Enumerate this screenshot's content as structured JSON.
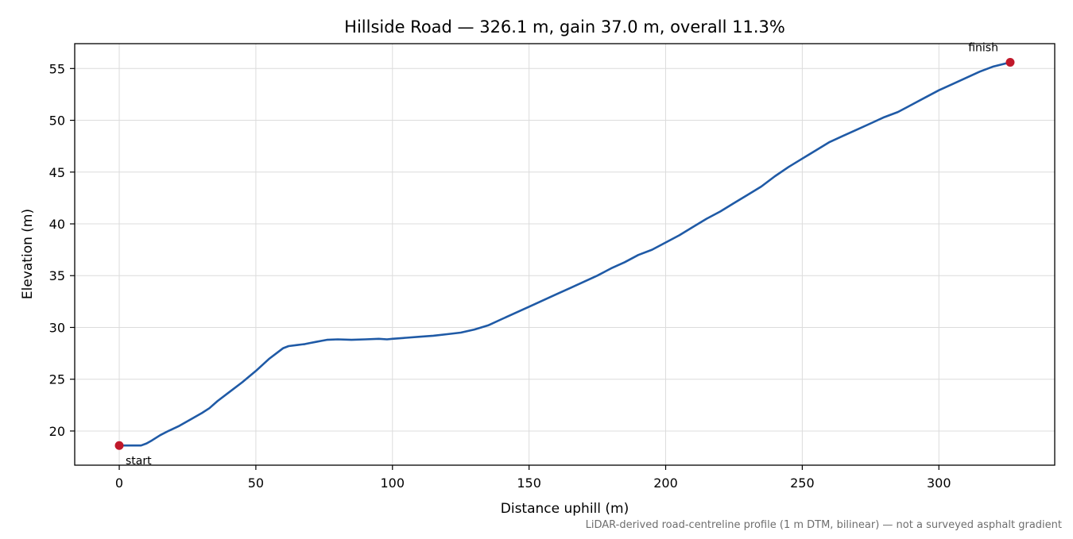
{
  "chart_data": {
    "type": "line",
    "title": "Hillside Road — 326.1 m, gain 37.0 m, overall 11.3%",
    "xlabel": "Distance uphill (m)",
    "ylabel": "Elevation (m)",
    "xlim": [
      -16.3,
      342.4
    ],
    "ylim": [
      16.7,
      57.4
    ],
    "x_ticks": [
      0,
      50,
      100,
      150,
      200,
      250,
      300
    ],
    "y_ticks": [
      20,
      25,
      30,
      35,
      40,
      45,
      50,
      55
    ],
    "grid": true,
    "footnote": "LiDAR-derived road-centreline profile (1 m DTM, bilinear) — not a surveyed asphalt gradient",
    "series": [
      {
        "color": "#1f5aa6",
        "x": [
          0,
          3,
          5,
          8,
          10,
          12,
          15,
          18,
          22,
          26,
          30,
          33,
          36,
          40,
          45,
          50,
          55,
          58,
          60,
          62,
          65,
          68,
          70,
          72,
          74,
          76,
          80,
          85,
          90,
          95,
          98,
          100,
          105,
          110,
          115,
          120,
          125,
          130,
          135,
          140,
          145,
          150,
          155,
          160,
          165,
          170,
          175,
          180,
          185,
          190,
          195,
          200,
          205,
          210,
          215,
          220,
          225,
          230,
          235,
          240,
          245,
          250,
          255,
          260,
          265,
          270,
          275,
          280,
          285,
          290,
          295,
          300,
          305,
          310,
          315,
          320,
          326.1
        ],
        "y": [
          18.6,
          18.6,
          18.6,
          18.6,
          18.8,
          19.1,
          19.6,
          20.0,
          20.5,
          21.1,
          21.7,
          22.2,
          22.9,
          23.7,
          24.7,
          25.8,
          27.0,
          27.6,
          28.0,
          28.2,
          28.3,
          28.4,
          28.5,
          28.6,
          28.7,
          28.8,
          28.85,
          28.8,
          28.85,
          28.9,
          28.85,
          28.9,
          29.0,
          29.1,
          29.2,
          29.35,
          29.5,
          29.8,
          30.2,
          30.8,
          31.4,
          32.0,
          32.6,
          33.2,
          33.8,
          34.4,
          35.0,
          35.7,
          36.3,
          37.0,
          37.5,
          38.2,
          38.9,
          39.7,
          40.5,
          41.2,
          42.0,
          42.8,
          43.6,
          44.6,
          45.5,
          46.3,
          47.1,
          47.9,
          48.5,
          49.1,
          49.7,
          50.3,
          50.8,
          51.5,
          52.2,
          52.9,
          53.5,
          54.1,
          54.7,
          55.2,
          55.6
        ]
      }
    ],
    "markers": [
      {
        "label": "start",
        "x": 0,
        "y": 18.6,
        "color": "#c0182a"
      },
      {
        "label": "finish",
        "x": 326.1,
        "y": 55.6,
        "color": "#c0182a"
      }
    ]
  }
}
